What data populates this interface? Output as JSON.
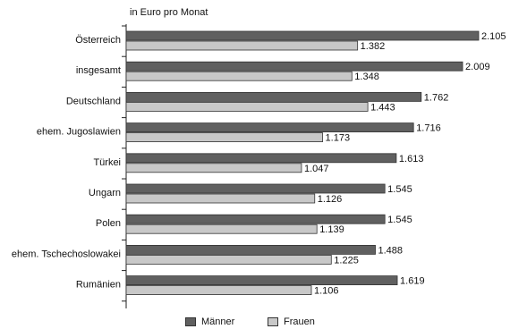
{
  "chart_data": {
    "type": "bar",
    "orientation": "horizontal",
    "unit_label": "in Euro pro Monat",
    "categories": [
      "Österreich",
      "insgesamt",
      "Deutschland",
      "ehem. Jugoslawien",
      "Türkei",
      "Ungarn",
      "Polen",
      "ehem. Tschechoslowakei",
      "Rumänien"
    ],
    "series": [
      {
        "name": "Männer",
        "color": "#606060",
        "values": [
          2105,
          2009,
          1762,
          1716,
          1613,
          1545,
          1545,
          1488,
          1619
        ],
        "labels": [
          "2.105",
          "2.009",
          "1.762",
          "1.716",
          "1.613",
          "1.545",
          "1.545",
          "1.488",
          "1.619"
        ]
      },
      {
        "name": "Frauen",
        "color": "#c8c8c8",
        "values": [
          1382,
          1348,
          1443,
          1173,
          1047,
          1126,
          1139,
          1225,
          1106
        ],
        "labels": [
          "1.382",
          "1.348",
          "1.443",
          "1.173",
          "1.047",
          "1.126",
          "1.139",
          "1.225",
          "1.106"
        ]
      }
    ],
    "xlim": [
      0,
      2150
    ],
    "grid": false,
    "legend_position": "bottom"
  }
}
